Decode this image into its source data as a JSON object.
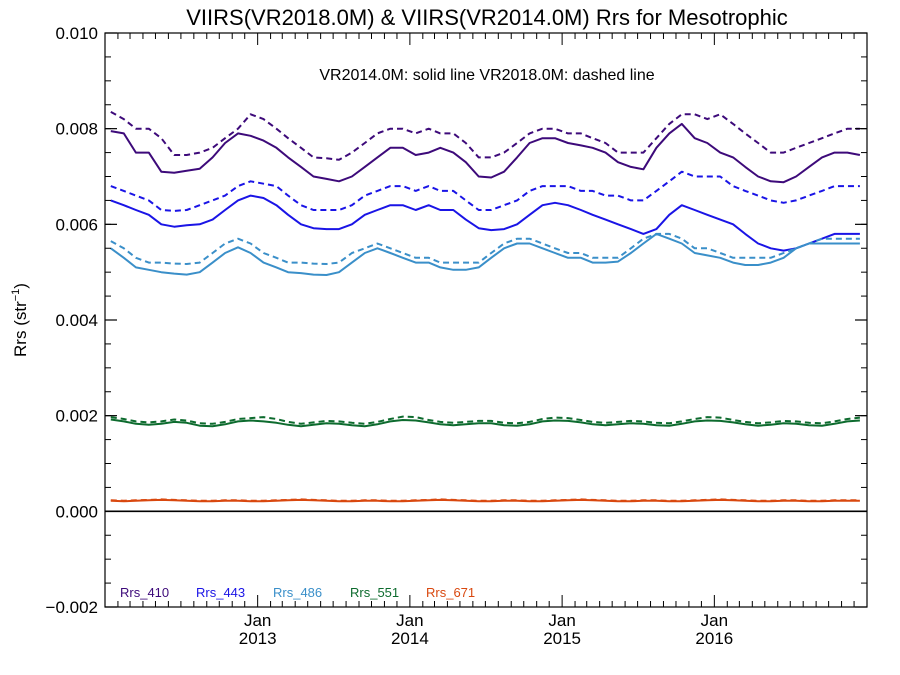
{
  "chart_data": {
    "type": "line",
    "title": "VIIRS(VR2018.0M) & VIIRS(VR2014.0M)  Rrs for Mesotrophic",
    "annotation": "VR2014.0M: solid line   VR2018.0M: dashed line",
    "ylabel": "Rrs (str",
    "ylabel_sup": "−1",
    "ylabel_close": ")",
    "ylim": [
      -0.002,
      0.01
    ],
    "xlim": [
      "2012-01-01",
      "2017-01-01"
    ],
    "yticks": [
      {
        "value": -0.002,
        "label": "−0.002"
      },
      {
        "value": 0.0,
        "label": "0.000"
      },
      {
        "value": 0.002,
        "label": "0.002"
      },
      {
        "value": 0.004,
        "label": "0.004"
      },
      {
        "value": 0.006,
        "label": "0.006"
      },
      {
        "value": 0.008,
        "label": "0.008"
      },
      {
        "value": 0.01,
        "label": "0.010"
      }
    ],
    "xticks": [
      {
        "date": "2013-01-01",
        "line1": "Jan",
        "line2": "2013"
      },
      {
        "date": "2014-01-01",
        "line1": "Jan",
        "line2": "2014"
      },
      {
        "date": "2015-01-01",
        "line1": "Jan",
        "line2": "2015"
      },
      {
        "date": "2016-01-01",
        "line1": "Jan",
        "line2": "2016"
      }
    ],
    "zero_line": 0.0,
    "x": [
      "2012-01",
      "2012-02",
      "2012-03",
      "2012-04",
      "2012-05",
      "2012-06",
      "2012-07",
      "2012-08",
      "2012-09",
      "2012-10",
      "2012-11",
      "2012-12",
      "2013-01",
      "2013-02",
      "2013-03",
      "2013-04",
      "2013-05",
      "2013-06",
      "2013-07",
      "2013-08",
      "2013-09",
      "2013-10",
      "2013-11",
      "2013-12",
      "2014-01",
      "2014-02",
      "2014-03",
      "2014-04",
      "2014-05",
      "2014-06",
      "2014-07",
      "2014-08",
      "2014-09",
      "2014-10",
      "2014-11",
      "2014-12",
      "2015-01",
      "2015-02",
      "2015-03",
      "2015-04",
      "2015-05",
      "2015-06",
      "2015-07",
      "2015-08",
      "2015-09",
      "2015-10",
      "2015-11",
      "2015-12",
      "2016-01",
      "2016-02",
      "2016-03",
      "2016-04",
      "2016-05",
      "2016-06",
      "2016-07",
      "2016-08",
      "2016-09",
      "2016-10",
      "2016-11",
      "2016-12"
    ],
    "series": [
      {
        "name": "Rrs_410",
        "color": "#3d0a7a",
        "solid": [
          0.00795,
          0.0079,
          0.0075,
          0.0075,
          0.0071,
          0.00708,
          0.00712,
          0.00716,
          0.0074,
          0.0077,
          0.0079,
          0.00785,
          0.00775,
          0.0076,
          0.0074,
          0.0072,
          0.007,
          0.00695,
          0.0069,
          0.007,
          0.0072,
          0.0074,
          0.0076,
          0.0076,
          0.00745,
          0.0075,
          0.0076,
          0.0075,
          0.0073,
          0.007,
          0.00698,
          0.0071,
          0.0074,
          0.0077,
          0.0078,
          0.0078,
          0.0077,
          0.00765,
          0.0076,
          0.0075,
          0.0073,
          0.0072,
          0.00715,
          0.0076,
          0.0079,
          0.0081,
          0.0078,
          0.0077,
          0.0075,
          0.0074,
          0.0072,
          0.007,
          0.0069,
          0.00688,
          0.007,
          0.0072,
          0.0074,
          0.0075,
          0.0075,
          0.00745
        ],
        "dashed": [
          0.00835,
          0.0082,
          0.008,
          0.008,
          0.0078,
          0.00745,
          0.00745,
          0.0075,
          0.0076,
          0.0078,
          0.008,
          0.0083,
          0.0082,
          0.008,
          0.0078,
          0.0076,
          0.0074,
          0.00738,
          0.00735,
          0.0075,
          0.0077,
          0.0079,
          0.008,
          0.008,
          0.0079,
          0.008,
          0.0079,
          0.0079,
          0.0077,
          0.0074,
          0.0074,
          0.0075,
          0.0077,
          0.0079,
          0.008,
          0.008,
          0.0079,
          0.0079,
          0.0078,
          0.0077,
          0.0075,
          0.0075,
          0.0075,
          0.0078,
          0.0081,
          0.0083,
          0.0083,
          0.0082,
          0.0083,
          0.0081,
          0.0079,
          0.0077,
          0.0075,
          0.0075,
          0.0076,
          0.0077,
          0.0078,
          0.0079,
          0.008,
          0.008
        ]
      },
      {
        "name": "Rrs_443",
        "color": "#1a14e6",
        "solid": [
          0.0065,
          0.0064,
          0.0063,
          0.0062,
          0.006,
          0.00595,
          0.00598,
          0.006,
          0.0061,
          0.0063,
          0.0065,
          0.0066,
          0.00655,
          0.0064,
          0.0062,
          0.006,
          0.00592,
          0.0059,
          0.0059,
          0.006,
          0.0062,
          0.0063,
          0.0064,
          0.0064,
          0.0063,
          0.0064,
          0.0063,
          0.0063,
          0.0061,
          0.00592,
          0.00588,
          0.0059,
          0.006,
          0.0062,
          0.0064,
          0.00645,
          0.0064,
          0.0063,
          0.0062,
          0.0061,
          0.006,
          0.0059,
          0.0058,
          0.0059,
          0.0062,
          0.0064,
          0.0063,
          0.0062,
          0.0061,
          0.006,
          0.0058,
          0.0056,
          0.0055,
          0.00545,
          0.0055,
          0.0056,
          0.0057,
          0.0058,
          0.0058,
          0.0058
        ],
        "dashed": [
          0.0068,
          0.0067,
          0.0066,
          0.0065,
          0.0063,
          0.00628,
          0.0063,
          0.0064,
          0.0065,
          0.0066,
          0.0068,
          0.0069,
          0.00685,
          0.0068,
          0.0066,
          0.0064,
          0.0063,
          0.0063,
          0.0063,
          0.0064,
          0.0066,
          0.0067,
          0.0068,
          0.0068,
          0.0067,
          0.0068,
          0.0067,
          0.0067,
          0.0065,
          0.0063,
          0.0063,
          0.0064,
          0.0065,
          0.0067,
          0.0068,
          0.0068,
          0.0068,
          0.0067,
          0.0067,
          0.0066,
          0.0066,
          0.0065,
          0.0065,
          0.0067,
          0.0069,
          0.0071,
          0.007,
          0.007,
          0.007,
          0.0068,
          0.0067,
          0.0066,
          0.0065,
          0.00645,
          0.0065,
          0.0066,
          0.0067,
          0.0068,
          0.0068,
          0.0068
        ]
      },
      {
        "name": "Rrs_486",
        "color": "#3a8fc9",
        "solid": [
          0.0055,
          0.0053,
          0.0051,
          0.00505,
          0.005,
          0.00497,
          0.00495,
          0.005,
          0.0052,
          0.0054,
          0.00552,
          0.0054,
          0.0052,
          0.0051,
          0.005,
          0.00498,
          0.00495,
          0.00494,
          0.005,
          0.0052,
          0.0054,
          0.0055,
          0.0054,
          0.0053,
          0.0052,
          0.0052,
          0.0051,
          0.00505,
          0.00505,
          0.0051,
          0.0053,
          0.0055,
          0.0056,
          0.0056,
          0.0055,
          0.0054,
          0.0053,
          0.0053,
          0.0052,
          0.0052,
          0.00522,
          0.0054,
          0.0056,
          0.0058,
          0.0057,
          0.0056,
          0.0054,
          0.00535,
          0.0053,
          0.0052,
          0.00515,
          0.00515,
          0.0052,
          0.0053,
          0.0055,
          0.0056,
          0.0056,
          0.0056,
          0.0056,
          0.0056
        ],
        "dashed": [
          0.00565,
          0.0055,
          0.0053,
          0.0052,
          0.0052,
          0.00518,
          0.00517,
          0.0052,
          0.0054,
          0.0056,
          0.0057,
          0.0056,
          0.0054,
          0.0053,
          0.0052,
          0.0052,
          0.00518,
          0.00517,
          0.0052,
          0.0054,
          0.0055,
          0.0056,
          0.0055,
          0.0054,
          0.0053,
          0.0053,
          0.0052,
          0.0052,
          0.0052,
          0.0052,
          0.0054,
          0.0056,
          0.0057,
          0.0057,
          0.0056,
          0.0055,
          0.0054,
          0.0054,
          0.0053,
          0.0053,
          0.0053,
          0.0055,
          0.0057,
          0.0058,
          0.0058,
          0.0057,
          0.0055,
          0.0055,
          0.0054,
          0.0053,
          0.0053,
          0.0053,
          0.0053,
          0.0054,
          0.0055,
          0.0056,
          0.0057,
          0.0057,
          0.0057,
          0.0057
        ]
      },
      {
        "name": "Rrs_551",
        "color": "#0d6b2e",
        "solid": [
          0.00192,
          0.00188,
          0.00183,
          0.00181,
          0.00183,
          0.00187,
          0.00185,
          0.00179,
          0.00178,
          0.00182,
          0.00188,
          0.0019,
          0.00188,
          0.00185,
          0.00181,
          0.00178,
          0.00181,
          0.00184,
          0.00183,
          0.0018,
          0.00178,
          0.00182,
          0.00188,
          0.00191,
          0.0019,
          0.00186,
          0.00182,
          0.0018,
          0.00182,
          0.00184,
          0.00184,
          0.0018,
          0.00179,
          0.00182,
          0.00188,
          0.0019,
          0.00189,
          0.00186,
          0.00182,
          0.0018,
          0.00182,
          0.00184,
          0.00183,
          0.0018,
          0.00179,
          0.00183,
          0.00188,
          0.0019,
          0.00189,
          0.00186,
          0.00182,
          0.00179,
          0.00181,
          0.00184,
          0.00183,
          0.0018,
          0.00179,
          0.00183,
          0.00188,
          0.0019
        ],
        "dashed": [
          0.00197,
          0.00193,
          0.00188,
          0.00186,
          0.00188,
          0.00192,
          0.0019,
          0.00184,
          0.00183,
          0.00187,
          0.00193,
          0.00195,
          0.00197,
          0.00193,
          0.00187,
          0.00183,
          0.00186,
          0.00189,
          0.00188,
          0.00185,
          0.00183,
          0.00187,
          0.00193,
          0.00198,
          0.00197,
          0.00191,
          0.00187,
          0.00185,
          0.00187,
          0.00189,
          0.00189,
          0.00185,
          0.00184,
          0.00187,
          0.00193,
          0.00196,
          0.00195,
          0.00191,
          0.00187,
          0.00185,
          0.00187,
          0.00189,
          0.00188,
          0.00185,
          0.00184,
          0.00188,
          0.00193,
          0.00197,
          0.00196,
          0.00191,
          0.00187,
          0.00184,
          0.00186,
          0.00189,
          0.00188,
          0.00185,
          0.00184,
          0.00188,
          0.00193,
          0.00196
        ]
      },
      {
        "name": "Rrs_671",
        "color": "#d9480f",
        "solid": [
          0.00022,
          0.00021,
          0.00022,
          0.00023,
          0.00024,
          0.00023,
          0.00022,
          0.00021,
          0.00021,
          0.00022,
          0.00022,
          0.00021,
          0.00021,
          0.00022,
          0.00023,
          0.00024,
          0.00023,
          0.00022,
          0.00021,
          0.00021,
          0.00022,
          0.00022,
          0.00021,
          0.00021,
          0.00022,
          0.00023,
          0.00024,
          0.00023,
          0.00022,
          0.00021,
          0.00021,
          0.00022,
          0.00022,
          0.00021,
          0.00021,
          0.00022,
          0.00023,
          0.00024,
          0.00023,
          0.00022,
          0.00021,
          0.00021,
          0.00022,
          0.00022,
          0.00021,
          0.00021,
          0.00022,
          0.00023,
          0.00024,
          0.00023,
          0.00022,
          0.00021,
          0.00021,
          0.00022,
          0.00022,
          0.00021,
          0.00021,
          0.00022,
          0.00022,
          0.00022
        ],
        "dashed": [
          0.00023,
          0.00022,
          0.00023,
          0.00024,
          0.00025,
          0.00024,
          0.00023,
          0.00022,
          0.00022,
          0.00023,
          0.00023,
          0.00022,
          0.00022,
          0.00023,
          0.00024,
          0.00025,
          0.00024,
          0.00023,
          0.00022,
          0.00022,
          0.00023,
          0.00023,
          0.00022,
          0.00022,
          0.00023,
          0.00024,
          0.00025,
          0.00024,
          0.00023,
          0.00022,
          0.00022,
          0.00023,
          0.00023,
          0.00022,
          0.00022,
          0.00023,
          0.00024,
          0.00025,
          0.00024,
          0.00023,
          0.00022,
          0.00022,
          0.00023,
          0.00023,
          0.00022,
          0.00022,
          0.00023,
          0.00024,
          0.00025,
          0.00024,
          0.00023,
          0.00022,
          0.00022,
          0.00023,
          0.00023,
          0.00022,
          0.00022,
          0.00023,
          0.00023,
          0.00023
        ]
      }
    ]
  }
}
